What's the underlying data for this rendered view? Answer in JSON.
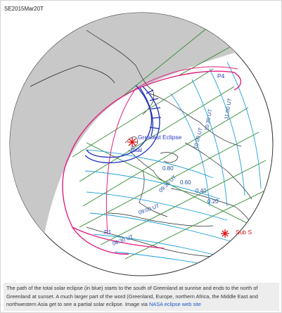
{
  "map": {
    "label": "SE2015Mar20T",
    "greatest_eclipse_label": "Greatest Eclipse",
    "total_label": "Total",
    "sub_sun_label": "Sub S",
    "contact_labels": {
      "p1": "P1",
      "p4": "P4"
    },
    "magnitude_labels": [
      "0.80",
      "0.60",
      "0.40",
      "0.20"
    ],
    "time_labels": [
      "08:30 UT",
      "09:00 UT",
      "09:30 UT",
      "10:00 UT",
      "10:30 UT",
      "11:00 UT"
    ],
    "colors": {
      "ocean": "#ffffff",
      "night_side": "#c8c8c8",
      "land": "#ffffff",
      "graticule": "#2e8b2e",
      "totality_path": "#1f2fb8",
      "penumbra_outline": "#e0207f",
      "time_lines": "#1ea0d8",
      "greatest_eclipse_marker": "#dd1111"
    }
  },
  "caption": {
    "text": "The path of the total solar eclipse (in blue) starts to the south of Greenland at sunrise and ends to the north of Greenland at sunset. A much larger part of the word (Greenland, Europe, northern Africa, the Middle East and northwestern Asia get to see a partial solar eclipse. Image via",
    "link_text": "NASA eclipse web site"
  }
}
